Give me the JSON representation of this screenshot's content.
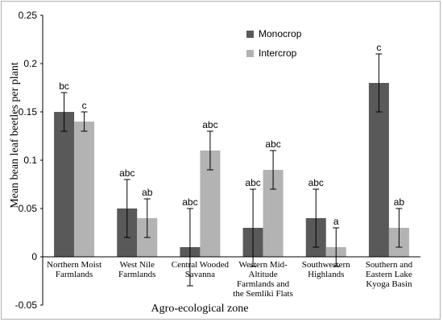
{
  "chart_data": {
    "type": "bar",
    "ylabel": "Mean bean leaf beetles per plant",
    "xlabel": "Agro-ecological  zone",
    "ylim": [
      -0.05,
      0.25
    ],
    "yticks": [
      "-0.05",
      "0",
      "0.05",
      "0.1",
      "0.15",
      "0.2",
      "0.25"
    ],
    "legend_position": "top-center",
    "grid": false,
    "categories": [
      [
        "Northern Moist",
        "Farmlands"
      ],
      [
        "West Nile",
        "Farmlands"
      ],
      [
        "Central Wooded",
        "Savanna"
      ],
      [
        "Western Mid-",
        "Altitude",
        "Farmlands and",
        "the Semliki Flats"
      ],
      [
        "Southwestern",
        "Highlands"
      ],
      [
        "Southern  and",
        "Eastern Lake",
        "Kyoga Basin"
      ]
    ],
    "series": [
      {
        "name": "Monocrop",
        "color": "#595959",
        "values": [
          0.15,
          0.05,
          0.01,
          0.03,
          0.04,
          0.18
        ],
        "errors": [
          0.02,
          0.03,
          0.04,
          0.04,
          0.03,
          0.03
        ],
        "labels": [
          "bc",
          "abc",
          "abc",
          "abc",
          "abc",
          "c"
        ]
      },
      {
        "name": "Intercrop",
        "color": "#b3b3b3",
        "values": [
          0.14,
          0.04,
          0.11,
          0.09,
          0.01,
          0.03
        ],
        "errors": [
          0.01,
          0.02,
          0.02,
          0.02,
          0.02,
          0.02
        ],
        "labels": [
          "c",
          "ab",
          "abc",
          "abc",
          "a",
          "ab"
        ]
      }
    ]
  }
}
